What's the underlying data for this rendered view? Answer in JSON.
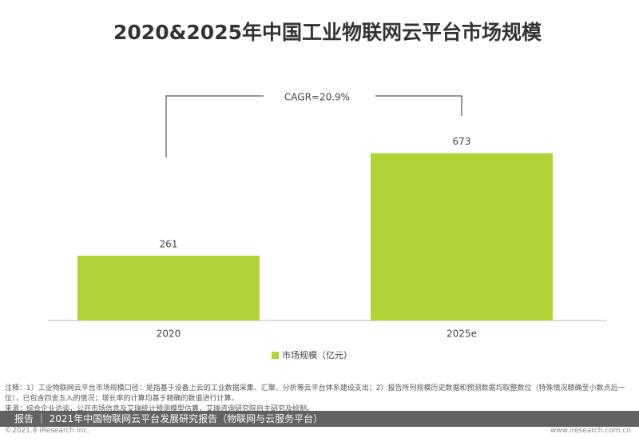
{
  "chart_data": {
    "type": "bar",
    "title": "2020&2025年中国工业物联网云平台市场规模",
    "categories": [
      "2020",
      "2025e"
    ],
    "series": [
      {
        "name": "市场规模（亿元）",
        "color": "#b0d335",
        "values": [
          261,
          673
        ]
      }
    ],
    "annotation": "CAGR=20.9%"
  },
  "notes": "注释：1）工业物联网云平台市场规模口径：是指基于设备上云的工业数据采集、汇聚、分析等云平台体系建设支出；2）报告所列规模历史数据和预测数据均取整数位（特殊情况精确至小数点后一位），已包含四舍五入的情况；增长率的计算均基于精确的数值进行计算。",
  "source": "来源：综合企业访谈，公开市场信息及艾瑞统计预测模型估算，艾瑞咨询研究院自主研究及绘制。",
  "footer": {
    "report": "报告 ｜ 2021年中国物联网云平台发展研究报告（物联网与云服务平台）",
    "copyright": "©2021.8 iResearch Inc.",
    "website": "www.iresearch.com.cn"
  }
}
